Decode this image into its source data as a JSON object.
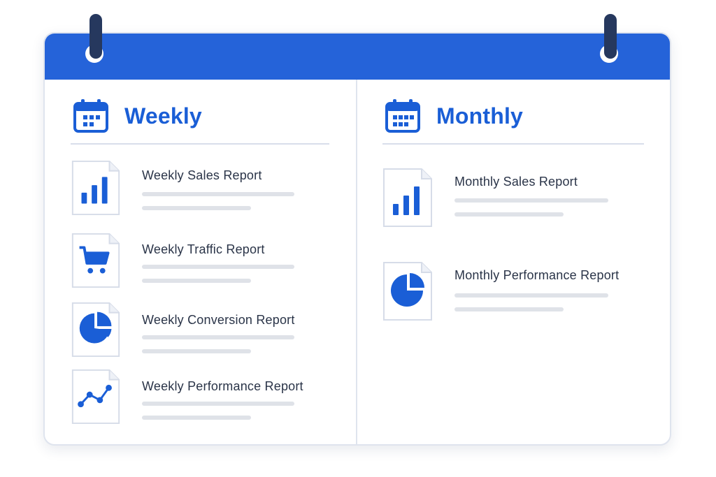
{
  "colors": {
    "accent": "#2563d9",
    "icon_blue": "#1a5ed6",
    "ring": "#26385e",
    "text": "#2a3448",
    "placeholder_line": "#dfe2e8"
  },
  "weekly": {
    "title": "Weekly",
    "icon": "calendar-icon",
    "reports": [
      {
        "title": "Weekly Sales Report",
        "icon": "bar-chart-icon"
      },
      {
        "title": "Weekly Traffic Report",
        "icon": "shopping-cart-icon"
      },
      {
        "title": "Weekly Conversion Report",
        "icon": "pie-chart-icon"
      },
      {
        "title": "Weekly Performance Report",
        "icon": "line-chart-icon"
      }
    ]
  },
  "monthly": {
    "title": "Monthly",
    "icon": "calendar-icon",
    "reports": [
      {
        "title": "Monthly Sales Report",
        "icon": "bar-chart-icon"
      },
      {
        "title": "Monthly Performance Report",
        "icon": "pie-chart-icon"
      }
    ]
  }
}
